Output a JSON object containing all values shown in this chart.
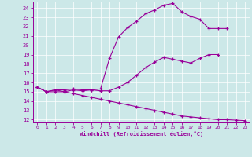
{
  "bg_color": "#cce8e8",
  "line_color": "#990099",
  "xlim": [
    -0.5,
    23.5
  ],
  "ylim": [
    11.7,
    24.7
  ],
  "yticks": [
    12,
    13,
    14,
    15,
    16,
    17,
    18,
    19,
    20,
    21,
    22,
    23,
    24
  ],
  "xticks": [
    0,
    1,
    2,
    3,
    4,
    5,
    6,
    7,
    8,
    9,
    10,
    11,
    12,
    13,
    14,
    15,
    16,
    17,
    18,
    19,
    20,
    21,
    22,
    23
  ],
  "xlabel": "Windchill (Refroidissement éolien,°C)",
  "curves": [
    {
      "x": [
        0,
        1,
        2,
        3,
        4,
        5,
        6,
        7,
        8,
        9,
        10,
        11,
        12,
        13,
        14,
        15,
        16,
        17,
        18,
        19,
        20,
        21
      ],
      "y": [
        15.5,
        15.0,
        15.2,
        15.0,
        15.2,
        15.1,
        15.2,
        15.3,
        18.6,
        20.9,
        21.9,
        22.6,
        23.4,
        23.8,
        24.3,
        24.5,
        23.6,
        23.1,
        22.8,
        21.8,
        21.8,
        21.8
      ]
    },
    {
      "x": [
        0,
        1,
        2,
        3,
        4,
        5,
        6,
        7,
        8,
        9,
        10,
        11,
        12,
        13,
        14,
        15,
        16,
        17,
        18,
        19,
        20
      ],
      "y": [
        15.5,
        15.0,
        15.2,
        15.2,
        15.3,
        15.2,
        15.2,
        15.1,
        15.1,
        15.5,
        16.0,
        16.8,
        17.6,
        18.2,
        18.7,
        18.5,
        18.3,
        18.1,
        18.6,
        19.0,
        19.0
      ]
    },
    {
      "x": [
        0,
        1,
        2,
        3,
        4,
        5,
        6,
        7,
        8,
        9,
        10,
        11,
        12,
        13,
        14,
        15,
        16,
        17,
        18,
        19,
        20,
        21,
        22,
        23
      ],
      "y": [
        15.5,
        15.0,
        15.0,
        15.0,
        14.8,
        14.6,
        14.4,
        14.2,
        14.0,
        13.8,
        13.6,
        13.4,
        13.2,
        13.0,
        12.8,
        12.6,
        12.4,
        12.3,
        12.2,
        12.1,
        12.0,
        12.0,
        11.95,
        11.9
      ]
    }
  ]
}
